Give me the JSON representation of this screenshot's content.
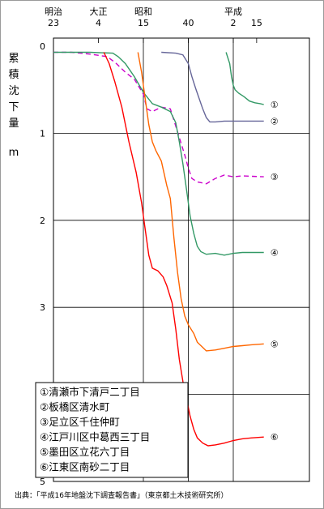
{
  "chart_data": {
    "type": "line",
    "era_labels": [
      {
        "name": "明治",
        "year": 1890
      },
      {
        "name": "大正",
        "year": 1915
      },
      {
        "name": "昭和",
        "year": 1940
      },
      {
        "name": "平成",
        "year": 1990
      }
    ],
    "x_tick_labels": [
      {
        "label": "23",
        "year": 1890
      },
      {
        "label": "4",
        "year": 1915
      },
      {
        "label": "15",
        "year": 1940
      },
      {
        "label": "40",
        "year": 1965
      },
      {
        "label": "2",
        "year": 1990
      },
      {
        "label": "15",
        "year": 2003
      }
    ],
    "xlim": [
      1890,
      2010
    ],
    "ylim": [
      0,
      5
    ],
    "y_ticks": [
      0,
      1,
      2,
      3,
      4,
      5
    ],
    "ylabel_chars": [
      "累",
      "積",
      "沈",
      "下",
      "量"
    ],
    "ylabel_unit": "m",
    "series": [
      {
        "marker": "①",
        "name": "清瀬市下清戸二丁目",
        "color": "#339966",
        "dash": false,
        "points": [
          [
            1986,
            0.07
          ],
          [
            1988,
            0.2
          ],
          [
            1989,
            0.35
          ],
          [
            1990,
            0.45
          ],
          [
            1991,
            0.5
          ],
          [
            1993,
            0.54
          ],
          [
            1996,
            0.58
          ],
          [
            1999,
            0.63
          ],
          [
            2002,
            0.65
          ],
          [
            2005,
            0.66
          ],
          [
            2007,
            0.67
          ]
        ]
      },
      {
        "marker": "②",
        "name": "板橋区清水町",
        "color": "#666699",
        "dash": false,
        "points": [
          [
            1950,
            0.07
          ],
          [
            1958,
            0.08
          ],
          [
            1962,
            0.1
          ],
          [
            1965,
            0.2
          ],
          [
            1967,
            0.35
          ],
          [
            1969,
            0.48
          ],
          [
            1971,
            0.6
          ],
          [
            1973,
            0.72
          ],
          [
            1975,
            0.82
          ],
          [
            1977,
            0.87
          ],
          [
            1980,
            0.87
          ],
          [
            1985,
            0.86
          ],
          [
            1995,
            0.86
          ],
          [
            2007,
            0.86
          ]
        ]
      },
      {
        "marker": "③",
        "name": "足立区千住仲町",
        "color": "#cc00cc",
        "dash": true,
        "points": [
          [
            1890,
            0.07
          ],
          [
            1900,
            0.07
          ],
          [
            1910,
            0.09
          ],
          [
            1920,
            0.12
          ],
          [
            1925,
            0.2
          ],
          [
            1930,
            0.3
          ],
          [
            1935,
            0.38
          ],
          [
            1940,
            0.55
          ],
          [
            1942,
            0.72
          ],
          [
            1945,
            0.75
          ],
          [
            1950,
            0.7
          ],
          [
            1955,
            0.72
          ],
          [
            1960,
            1.05
          ],
          [
            1963,
            1.25
          ],
          [
            1965,
            1.4
          ],
          [
            1967,
            1.52
          ],
          [
            1970,
            1.56
          ],
          [
            1975,
            1.58
          ],
          [
            1980,
            1.52
          ],
          [
            1985,
            1.48
          ],
          [
            1990,
            1.5
          ],
          [
            1995,
            1.49
          ],
          [
            2007,
            1.5
          ]
        ]
      },
      {
        "marker": "④",
        "name": "江戸川区中葛西三丁目",
        "color": "#339966",
        "dash": false,
        "points": [
          [
            1890,
            0.07
          ],
          [
            1910,
            0.07
          ],
          [
            1923,
            0.08
          ],
          [
            1926,
            0.12
          ],
          [
            1930,
            0.2
          ],
          [
            1935,
            0.35
          ],
          [
            1940,
            0.53
          ],
          [
            1945,
            0.66
          ],
          [
            1950,
            0.7
          ],
          [
            1955,
            0.75
          ],
          [
            1958,
            0.88
          ],
          [
            1960,
            1.1
          ],
          [
            1962,
            1.35
          ],
          [
            1964,
            1.65
          ],
          [
            1966,
            1.95
          ],
          [
            1968,
            2.15
          ],
          [
            1970,
            2.3
          ],
          [
            1972,
            2.36
          ],
          [
            1975,
            2.39
          ],
          [
            1980,
            2.38
          ],
          [
            1985,
            2.4
          ],
          [
            1990,
            2.38
          ],
          [
            1995,
            2.37
          ],
          [
            2007,
            2.37
          ]
        ]
      },
      {
        "marker": "⑤",
        "name": "墨田区立花六丁目",
        "color": "#ff6600",
        "dash": false,
        "points": [
          [
            1937,
            0.07
          ],
          [
            1939,
            0.3
          ],
          [
            1941,
            0.6
          ],
          [
            1943,
            0.9
          ],
          [
            1945,
            1.1
          ],
          [
            1947,
            1.2
          ],
          [
            1950,
            1.32
          ],
          [
            1953,
            1.6
          ],
          [
            1955,
            1.75
          ],
          [
            1957,
            2.2
          ],
          [
            1959,
            2.6
          ],
          [
            1961,
            2.9
          ],
          [
            1963,
            3.1
          ],
          [
            1965,
            3.2
          ],
          [
            1968,
            3.3
          ],
          [
            1970,
            3.4
          ],
          [
            1973,
            3.46
          ],
          [
            1975,
            3.5
          ],
          [
            1980,
            3.49
          ],
          [
            1985,
            3.47
          ],
          [
            1990,
            3.45
          ],
          [
            1995,
            3.44
          ],
          [
            2000,
            3.43
          ],
          [
            2007,
            3.42
          ]
        ]
      },
      {
        "marker": "⑥",
        "name": "江東区南砂二丁目",
        "color": "#ff0000",
        "dash": false,
        "points": [
          [
            1918,
            0.07
          ],
          [
            1921,
            0.2
          ],
          [
            1924,
            0.4
          ],
          [
            1928,
            0.7
          ],
          [
            1932,
            1.1
          ],
          [
            1936,
            1.45
          ],
          [
            1939,
            1.8
          ],
          [
            1941,
            2.1
          ],
          [
            1943,
            2.4
          ],
          [
            1945,
            2.55
          ],
          [
            1948,
            2.58
          ],
          [
            1951,
            2.65
          ],
          [
            1953,
            2.75
          ],
          [
            1956,
            2.95
          ],
          [
            1958,
            3.25
          ],
          [
            1960,
            3.6
          ],
          [
            1962,
            3.85
          ],
          [
            1964,
            4.05
          ],
          [
            1966,
            4.25
          ],
          [
            1968,
            4.4
          ],
          [
            1970,
            4.5
          ],
          [
            1973,
            4.56
          ],
          [
            1976,
            4.59
          ],
          [
            1980,
            4.58
          ],
          [
            1985,
            4.56
          ],
          [
            1990,
            4.53
          ],
          [
            1995,
            4.51
          ],
          [
            2000,
            4.5
          ],
          [
            2007,
            4.49
          ]
        ]
      }
    ],
    "legend_placement": "bottom-left",
    "gridlines": {
      "horizontal": true,
      "vertical_years": [
        1940,
        1965,
        1990
      ]
    }
  },
  "source": "出典：「平成16年地盤沈下調査報告書」（東京都土木技術研究所）"
}
